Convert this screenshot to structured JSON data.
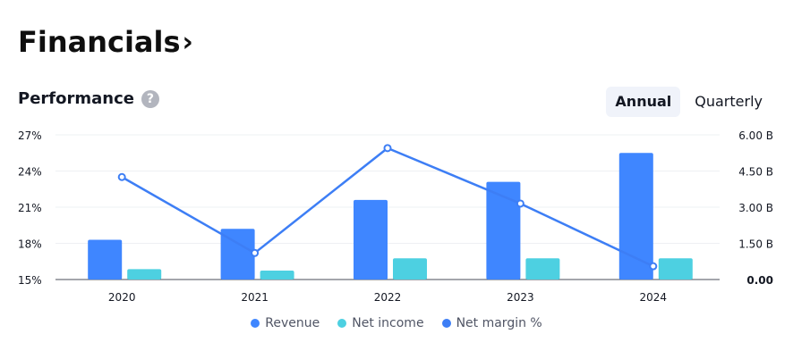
{
  "header": {
    "title": "Financials",
    "chevron": "›"
  },
  "section": {
    "label": "Performance",
    "help_icon": "question-circle-icon",
    "help_glyph": "?"
  },
  "tabs": [
    {
      "label": "Annual",
      "active": true
    },
    {
      "label": "Quarterly",
      "active": false
    }
  ],
  "colors": {
    "revenue": "#3f86ff",
    "net_income": "#4dd0e1",
    "net_margin": "#3d7ef5"
  },
  "chart_data": {
    "type": "bar",
    "categories": [
      "2020",
      "2021",
      "2022",
      "2023",
      "2024"
    ],
    "series": [
      {
        "name": "Revenue",
        "kind": "bar",
        "axis": "right",
        "values": [
          1.65,
          2.1,
          3.3,
          4.05,
          5.25
        ]
      },
      {
        "name": "Net income",
        "kind": "bar",
        "axis": "right",
        "values": [
          0.43,
          0.37,
          0.88,
          0.88,
          0.88
        ]
      },
      {
        "name": "Net margin %",
        "kind": "line",
        "axis": "left",
        "values": [
          23.5,
          17.2,
          25.9,
          21.3,
          16.1
        ]
      }
    ],
    "left_axis": {
      "ticks": [
        "27%",
        "24%",
        "21%",
        "18%",
        "15%"
      ],
      "range": [
        15,
        27
      ]
    },
    "right_axis": {
      "ticks": [
        "6.00 B",
        "4.50 B",
        "3.00 B",
        "1.50 B",
        "0.00"
      ],
      "range": [
        0,
        6
      ]
    },
    "legend_position": "bottom-center",
    "grid": true
  }
}
